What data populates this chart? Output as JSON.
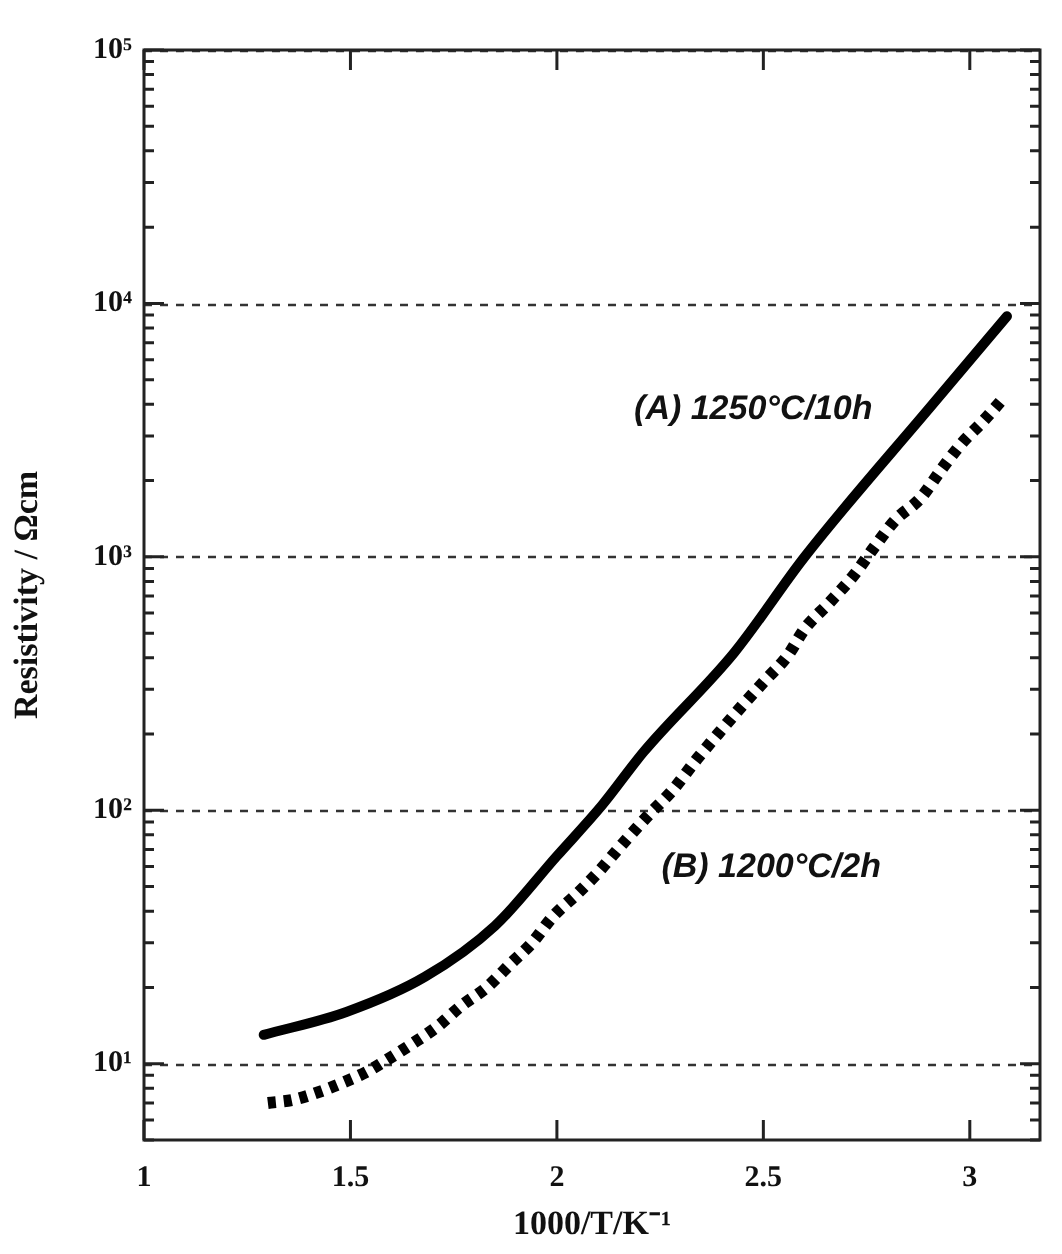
{
  "chart_data": {
    "type": "line",
    "xlabel": "1000/T/K⁻¹",
    "ylabel": "Resistivity / Ωcm",
    "log": "y",
    "grid": "y",
    "legend": false,
    "marker": "none",
    "xlim": [
      1,
      3.17
    ],
    "xticks": [
      1,
      1.5,
      2,
      2.5,
      3
    ],
    "ylim": [
      5,
      100000
    ],
    "yticks": [
      {
        "value": 5,
        "label": null
      },
      {
        "value": 6,
        "label": null
      },
      {
        "value": 7,
        "label": null
      },
      {
        "value": 8,
        "label": null
      },
      {
        "value": 9,
        "label": null
      },
      {
        "value": 10,
        "label": "10¹"
      },
      {
        "value": 20,
        "label": null
      },
      {
        "value": 30,
        "label": null
      },
      {
        "value": 40,
        "label": null
      },
      {
        "value": 50,
        "label": null
      },
      {
        "value": 60,
        "label": null
      },
      {
        "value": 70,
        "label": null
      },
      {
        "value": 80,
        "label": null
      },
      {
        "value": 90,
        "label": null
      },
      {
        "value": 100,
        "label": "10²"
      },
      {
        "value": 200,
        "label": null
      },
      {
        "value": 300,
        "label": null
      },
      {
        "value": 400,
        "label": null
      },
      {
        "value": 500,
        "label": null
      },
      {
        "value": 600,
        "label": null
      },
      {
        "value": 700,
        "label": null
      },
      {
        "value": 800,
        "label": null
      },
      {
        "value": 900,
        "label": null
      },
      {
        "value": 1000,
        "label": "10³"
      },
      {
        "value": 2000,
        "label": null
      },
      {
        "value": 3000,
        "label": null
      },
      {
        "value": 4000,
        "label": null
      },
      {
        "value": 5000,
        "label": null
      },
      {
        "value": 6000,
        "label": null
      },
      {
        "value": 7000,
        "label": null
      },
      {
        "value": 8000,
        "label": null
      },
      {
        "value": 9000,
        "label": null
      },
      {
        "value": 10000,
        "label": "10⁴"
      },
      {
        "value": 20000,
        "label": null
      },
      {
        "value": 30000,
        "label": null
      },
      {
        "value": 40000,
        "label": null
      },
      {
        "value": 50000,
        "label": null
      },
      {
        "value": 60000,
        "label": null
      },
      {
        "value": 70000,
        "label": null
      },
      {
        "value": 80000,
        "label": null
      },
      {
        "value": 90000,
        "label": null
      },
      {
        "value": 100000,
        "label": "10⁵"
      }
    ],
    "series": [
      {
        "name": "(A) 1250°C/10h",
        "color": "#000000",
        "line_style": "solid",
        "x": [
          1.29,
          1.49,
          1.68,
          1.85,
          2.0,
          2.11,
          2.21,
          2.43,
          2.6,
          2.91,
          3.09
        ],
        "values": [
          13,
          16,
          22,
          35,
          66,
          105,
          170,
          420,
          1000,
          4000,
          8900
        ]
      },
      {
        "name": "(B) 1200°C/2h",
        "color": "#000000",
        "line_style": "dotted",
        "x": [
          1.3,
          1.36,
          1.43,
          1.48,
          1.54,
          1.59,
          1.65,
          1.71,
          1.77,
          1.83,
          1.89,
          1.94,
          1.99,
          2.05,
          2.1,
          2.16,
          2.22,
          2.28,
          2.34,
          2.39,
          2.45,
          2.5,
          2.56,
          2.6,
          2.66,
          2.72,
          2.77,
          2.82,
          2.88,
          2.93,
          2.98,
          3.03,
          3.08
        ],
        "values": [
          7,
          7.2,
          7.8,
          8.4,
          9.3,
          10.4,
          12,
          14,
          17,
          20,
          25,
          30,
          38,
          47,
          57,
          74,
          95,
          120,
          160,
          200,
          260,
          320,
          410,
          520,
          660,
          850,
          1100,
          1400,
          1700,
          2200,
          2800,
          3400,
          4200
        ]
      }
    ]
  }
}
